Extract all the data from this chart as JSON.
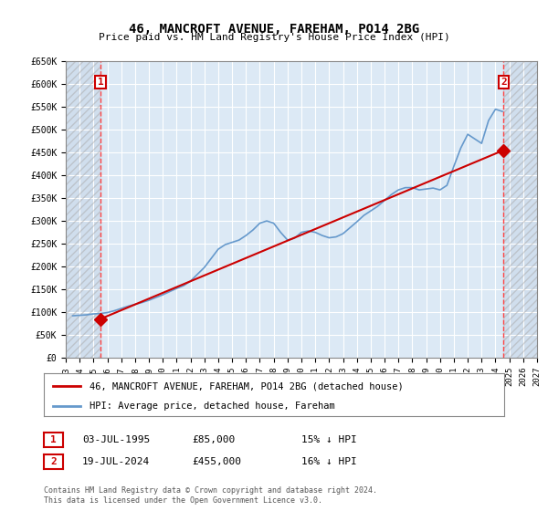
{
  "title": "46, MANCROFT AVENUE, FAREHAM, PO14 2BG",
  "subtitle": "Price paid vs. HM Land Registry's House Price Index (HPI)",
  "xlabel": "",
  "ylabel": "",
  "background_color": "#ffffff",
  "plot_bg_color": "#dce9f5",
  "hatch_color": "#c0c0c0",
  "grid_color": "#ffffff",
  "ylim": [
    0,
    650000
  ],
  "yticks": [
    0,
    50000,
    100000,
    150000,
    200000,
    250000,
    300000,
    350000,
    400000,
    450000,
    500000,
    550000,
    600000,
    650000
  ],
  "ytick_labels": [
    "£0",
    "£50K",
    "£100K",
    "£150K",
    "£200K",
    "£250K",
    "£300K",
    "£350K",
    "£400K",
    "£450K",
    "£500K",
    "£550K",
    "£600K",
    "£650K"
  ],
  "xlim_start": 1993,
  "xlim_end": 2027,
  "xticks": [
    1993,
    1994,
    1995,
    1996,
    1997,
    1998,
    1999,
    2000,
    2001,
    2002,
    2003,
    2004,
    2005,
    2006,
    2007,
    2008,
    2009,
    2010,
    2011,
    2012,
    2013,
    2014,
    2015,
    2016,
    2017,
    2018,
    2019,
    2020,
    2021,
    2022,
    2023,
    2024,
    2025,
    2026,
    2027
  ],
  "hpi_years": [
    1993.5,
    1994.0,
    1994.5,
    1995.0,
    1995.5,
    1996.0,
    1996.5,
    1997.0,
    1997.5,
    1998.0,
    1998.5,
    1999.0,
    1999.5,
    2000.0,
    2000.5,
    2001.0,
    2001.5,
    2002.0,
    2002.5,
    2003.0,
    2003.5,
    2004.0,
    2004.5,
    2005.0,
    2005.5,
    2006.0,
    2006.5,
    2007.0,
    2007.5,
    2008.0,
    2008.5,
    2009.0,
    2009.5,
    2010.0,
    2010.5,
    2011.0,
    2011.5,
    2012.0,
    2012.5,
    2013.0,
    2013.5,
    2014.0,
    2014.5,
    2015.0,
    2015.5,
    2016.0,
    2016.5,
    2017.0,
    2017.5,
    2018.0,
    2018.5,
    2019.0,
    2019.5,
    2020.0,
    2020.5,
    2021.0,
    2021.5,
    2022.0,
    2022.5,
    2023.0,
    2023.5,
    2024.0,
    2024.5
  ],
  "hpi_values": [
    92000,
    93000,
    94000,
    96000,
    97000,
    99000,
    103000,
    108000,
    113000,
    117000,
    121000,
    126000,
    132000,
    138000,
    145000,
    152000,
    158000,
    168000,
    183000,
    198000,
    218000,
    238000,
    248000,
    253000,
    258000,
    268000,
    280000,
    295000,
    300000,
    295000,
    275000,
    258000,
    262000,
    275000,
    278000,
    275000,
    268000,
    263000,
    265000,
    272000,
    285000,
    298000,
    312000,
    322000,
    332000,
    345000,
    358000,
    368000,
    373000,
    373000,
    368000,
    370000,
    372000,
    368000,
    378000,
    420000,
    460000,
    490000,
    480000,
    470000,
    520000,
    545000,
    540000
  ],
  "price_years": [
    1995.5,
    2024.58
  ],
  "price_values": [
    85000,
    455000
  ],
  "sale1_year": 1995.5,
  "sale1_value": 85000,
  "sale2_year": 2024.58,
  "sale2_value": 455000,
  "red_line_color": "#cc0000",
  "blue_line_color": "#6699cc",
  "marker_color": "#cc0000",
  "dashed_line_color": "#ff4444",
  "legend_label_red": "46, MANCROFT AVENUE, FAREHAM, PO14 2BG (detached house)",
  "legend_label_blue": "HPI: Average price, detached house, Fareham",
  "table_row1": [
    "1",
    "03-JUL-1995",
    "£85,000",
    "15% ↓ HPI"
  ],
  "table_row2": [
    "2",
    "19-JUL-2024",
    "£455,000",
    "16% ↓ HPI"
  ],
  "footnote": "Contains HM Land Registry data © Crown copyright and database right 2024.\nThis data is licensed under the Open Government Licence v3.0."
}
